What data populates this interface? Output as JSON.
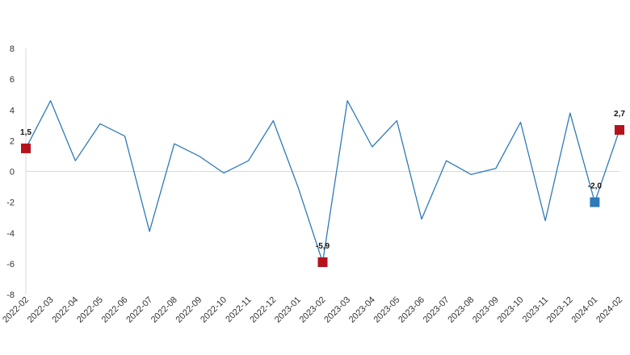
{
  "chart_data": {
    "type": "line",
    "title": "",
    "xlabel": "",
    "ylabel": "",
    "ylim": [
      -8,
      8
    ],
    "yticks": [
      -8,
      -6,
      -4,
      -2,
      0,
      2,
      4,
      6,
      8
    ],
    "grid": false,
    "categories": [
      "2022-02",
      "2022-03",
      "2022-04",
      "2022-05",
      "2022-06",
      "2022-07",
      "2022-08",
      "2022-09",
      "2022-10",
      "2022-11",
      "2022-12",
      "2023-01",
      "2023-02",
      "2023-03",
      "2023-04",
      "2023-05",
      "2023-06",
      "2023-07",
      "2023-08",
      "2023-09",
      "2023-10",
      "2023-11",
      "2023-12",
      "2024-01",
      "2024-02"
    ],
    "series": [
      {
        "values": [
          1.5,
          4.6,
          0.7,
          3.1,
          2.3,
          -3.9,
          1.8,
          1.0,
          -0.1,
          0.7,
          3.3,
          -1.0,
          -5.9,
          4.6,
          1.6,
          3.3,
          -3.1,
          0.7,
          -0.2,
          0.2,
          3.2,
          -3.2,
          3.8,
          -2.0,
          2.7
        ],
        "color": "#2e7ab8"
      }
    ],
    "highlights": [
      {
        "index": 0,
        "label": "1,5",
        "color": "#b5121b"
      },
      {
        "index": 12,
        "label": "-5,9",
        "color": "#b5121b"
      },
      {
        "index": 23,
        "label": "-2,0",
        "color": "#2e7ab8"
      },
      {
        "index": 24,
        "label": "2,7",
        "color": "#b5121b"
      }
    ]
  }
}
